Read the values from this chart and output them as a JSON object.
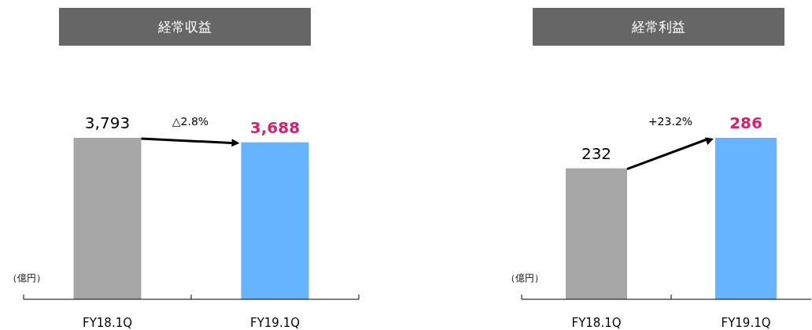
{
  "chart_data": [
    {
      "type": "bar",
      "title": "経常収益",
      "ylabel": "（億円）",
      "categories": [
        "FY18.1Q",
        "FY19.1Q"
      ],
      "values": [
        3793,
        3688
      ],
      "value_labels": [
        "3,793",
        "3,688"
      ],
      "colors": [
        "#a6a6a6",
        "#66b3ff"
      ],
      "annotations": [
        "△2.8%"
      ]
    },
    {
      "type": "bar",
      "title": "経常利益",
      "ylabel": "（億円）",
      "categories": [
        "FY18.1Q",
        "FY19.1Q"
      ],
      "values": [
        232,
        286
      ],
      "value_labels": [
        "232",
        "286"
      ],
      "colors": [
        "#a6a6a6",
        "#66b3ff"
      ],
      "annotations": [
        "+23.2%"
      ]
    }
  ]
}
